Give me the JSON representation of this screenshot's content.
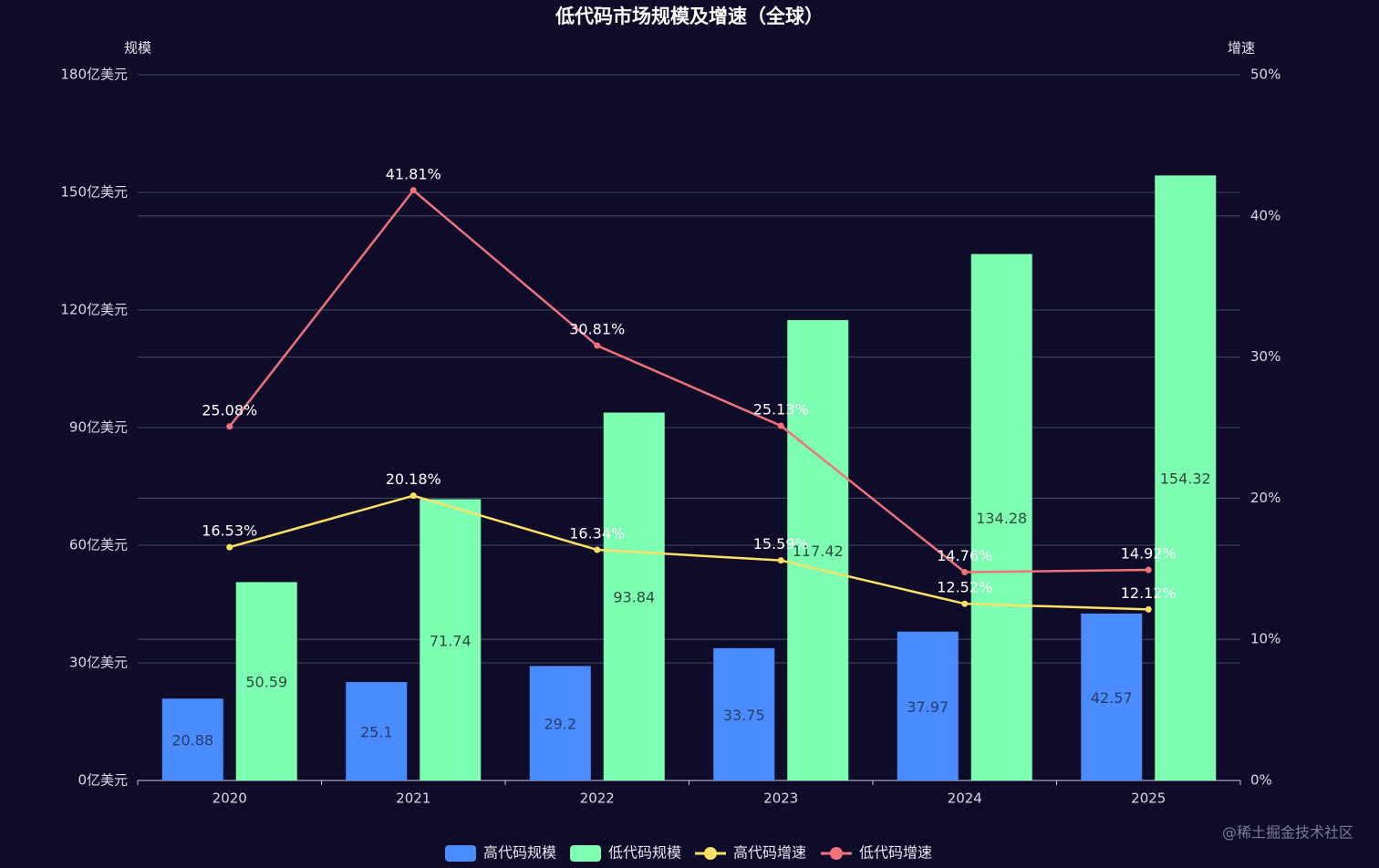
{
  "chart_data": {
    "type": "bar",
    "title": "低代码市场规模及增速（全球）",
    "ylabel": "规模",
    "y2label": "增速",
    "ylim": [
      0,
      180
    ],
    "y2lim": [
      0,
      50
    ],
    "yticks": [
      "0亿美元",
      "30亿美元",
      "60亿美元",
      "90亿美元",
      "120亿美元",
      "150亿美元",
      "180亿美元"
    ],
    "y2ticks": [
      "0%",
      "10%",
      "20%",
      "30%",
      "40%",
      "50%"
    ],
    "categories": [
      "2020",
      "2021",
      "2022",
      "2023",
      "2024",
      "2025"
    ],
    "grid": true,
    "legend_position": "bottom-center",
    "series": [
      {
        "name": "高代码规模",
        "kind": "bar",
        "axis": "left",
        "color": "#4a8bff",
        "label_color": "#2a3d66",
        "values": [
          20.88,
          25.1,
          29.2,
          33.75,
          37.97,
          42.57
        ]
      },
      {
        "name": "低代码规模",
        "kind": "bar",
        "axis": "left",
        "color": "#7dffb3",
        "label_color": "#2d4a3a",
        "values": [
          50.59,
          71.74,
          93.84,
          117.42,
          134.28,
          154.32
        ]
      },
      {
        "name": "高代码增速",
        "kind": "line",
        "axis": "right",
        "color": "#ffe066",
        "values": [
          16.53,
          20.18,
          16.34,
          15.59,
          12.52,
          12.12
        ],
        "labels": [
          "16.53%",
          "20.18%",
          "16.34%",
          "15.59%",
          "12.52%",
          "12.12%"
        ]
      },
      {
        "name": "低代码增速",
        "kind": "line",
        "axis": "right",
        "color": "#f2727a",
        "values": [
          25.08,
          41.81,
          30.81,
          25.13,
          14.76,
          14.92
        ],
        "labels": [
          "25.08%",
          "41.81%",
          "30.81%",
          "25.13%",
          "14.76%",
          "14.92%"
        ]
      }
    ]
  },
  "watermark": "@稀土掘金技术社区"
}
